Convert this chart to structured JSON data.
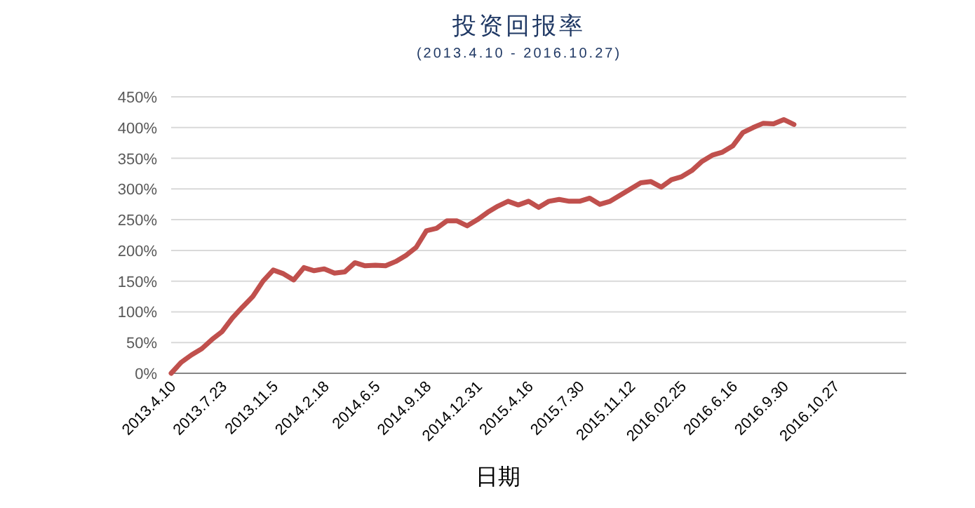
{
  "chart_data": {
    "type": "line",
    "title": "投资回报率",
    "subtitle": "(2013.4.10 - 2016.10.27)",
    "xlabel": "日期",
    "categories": [
      "2013.4.10",
      null,
      null,
      null,
      null,
      "2013.7.23",
      null,
      null,
      null,
      null,
      "2013.11.5",
      null,
      null,
      null,
      null,
      "2014.2.18",
      null,
      null,
      null,
      null,
      "2014.6.5",
      null,
      null,
      null,
      null,
      "2014.9.18",
      null,
      null,
      null,
      null,
      "2014.12.31",
      null,
      null,
      null,
      null,
      "2015.4.16",
      null,
      null,
      null,
      null,
      "2015.7.30",
      null,
      null,
      null,
      null,
      "2015.11.12",
      null,
      null,
      null,
      null,
      "2016.02.25",
      null,
      null,
      null,
      null,
      "2016.6.16",
      null,
      null,
      null,
      null,
      "2016.9.30",
      null,
      null,
      null,
      null,
      "2016.10.27",
      null,
      null,
      null,
      null,
      null,
      null,
      null
    ],
    "series": [
      {
        "color": "#c0504d",
        "values": [
          0,
          18,
          30,
          40,
          55,
          68,
          90,
          108,
          125,
          150,
          168,
          162,
          152,
          172,
          167,
          170,
          163,
          165,
          180,
          175,
          176,
          175,
          182,
          192,
          205,
          232,
          236,
          248,
          248,
          240,
          250,
          262,
          272,
          280,
          274,
          280,
          270,
          280,
          283,
          280,
          280,
          285,
          275,
          280,
          290,
          300,
          310,
          312,
          303,
          315,
          320,
          330,
          345,
          355,
          360,
          370,
          392,
          400,
          407,
          406,
          413,
          405,
          null,
          null,
          null,
          null,
          null,
          null,
          null,
          null,
          null,
          null,
          null
        ]
      }
    ],
    "ylim": [
      0,
      450
    ],
    "yticks": [
      {
        "value": 0,
        "label": "0%"
      },
      {
        "value": 50,
        "label": "50%"
      },
      {
        "value": 100,
        "label": "100%"
      },
      {
        "value": 150,
        "label": "150%"
      },
      {
        "value": 200,
        "label": "200%"
      },
      {
        "value": 250,
        "label": "250%"
      },
      {
        "value": 300,
        "label": "300%"
      },
      {
        "value": 350,
        "label": "350%"
      },
      {
        "value": 400,
        "label": "400%"
      },
      {
        "value": 450,
        "label": "450%"
      }
    ],
    "grid": "y",
    "marker": "none",
    "line_style": "solid"
  }
}
